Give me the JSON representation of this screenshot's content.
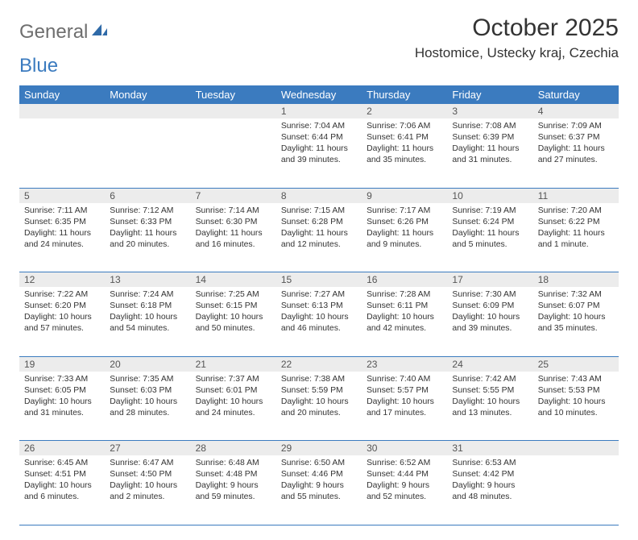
{
  "logo": {
    "part1": "General",
    "part2": "Blue"
  },
  "title": "October 2025",
  "location": "Hostomice, Ustecky kraj, Czechia",
  "colors": {
    "header_bg": "#3b7bbf",
    "header_text": "#ffffff",
    "daynum_bg": "#ececec",
    "border": "#3b7bbf",
    "logo_gray": "#6e6e6e",
    "logo_blue": "#3b7bbf"
  },
  "weekdays": [
    "Sunday",
    "Monday",
    "Tuesday",
    "Wednesday",
    "Thursday",
    "Friday",
    "Saturday"
  ],
  "weeks": [
    {
      "nums": [
        "",
        "",
        "",
        "1",
        "2",
        "3",
        "4"
      ],
      "cells": [
        null,
        null,
        null,
        {
          "sunrise": "7:04 AM",
          "sunset": "6:44 PM",
          "dayh": "11",
          "daym": "39"
        },
        {
          "sunrise": "7:06 AM",
          "sunset": "6:41 PM",
          "dayh": "11",
          "daym": "35"
        },
        {
          "sunrise": "7:08 AM",
          "sunset": "6:39 PM",
          "dayh": "11",
          "daym": "31"
        },
        {
          "sunrise": "7:09 AM",
          "sunset": "6:37 PM",
          "dayh": "11",
          "daym": "27"
        }
      ]
    },
    {
      "nums": [
        "5",
        "6",
        "7",
        "8",
        "9",
        "10",
        "11"
      ],
      "cells": [
        {
          "sunrise": "7:11 AM",
          "sunset": "6:35 PM",
          "dayh": "11",
          "daym": "24"
        },
        {
          "sunrise": "7:12 AM",
          "sunset": "6:33 PM",
          "dayh": "11",
          "daym": "20"
        },
        {
          "sunrise": "7:14 AM",
          "sunset": "6:30 PM",
          "dayh": "11",
          "daym": "16"
        },
        {
          "sunrise": "7:15 AM",
          "sunset": "6:28 PM",
          "dayh": "11",
          "daym": "12"
        },
        {
          "sunrise": "7:17 AM",
          "sunset": "6:26 PM",
          "dayh": "11",
          "daym": "9"
        },
        {
          "sunrise": "7:19 AM",
          "sunset": "6:24 PM",
          "dayh": "11",
          "daym": "5"
        },
        {
          "sunrise": "7:20 AM",
          "sunset": "6:22 PM",
          "dayh": "11",
          "daym": "1",
          "singular": true
        }
      ]
    },
    {
      "nums": [
        "12",
        "13",
        "14",
        "15",
        "16",
        "17",
        "18"
      ],
      "cells": [
        {
          "sunrise": "7:22 AM",
          "sunset": "6:20 PM",
          "dayh": "10",
          "daym": "57"
        },
        {
          "sunrise": "7:24 AM",
          "sunset": "6:18 PM",
          "dayh": "10",
          "daym": "54"
        },
        {
          "sunrise": "7:25 AM",
          "sunset": "6:15 PM",
          "dayh": "10",
          "daym": "50"
        },
        {
          "sunrise": "7:27 AM",
          "sunset": "6:13 PM",
          "dayh": "10",
          "daym": "46"
        },
        {
          "sunrise": "7:28 AM",
          "sunset": "6:11 PM",
          "dayh": "10",
          "daym": "42"
        },
        {
          "sunrise": "7:30 AM",
          "sunset": "6:09 PM",
          "dayh": "10",
          "daym": "39"
        },
        {
          "sunrise": "7:32 AM",
          "sunset": "6:07 PM",
          "dayh": "10",
          "daym": "35"
        }
      ]
    },
    {
      "nums": [
        "19",
        "20",
        "21",
        "22",
        "23",
        "24",
        "25"
      ],
      "cells": [
        {
          "sunrise": "7:33 AM",
          "sunset": "6:05 PM",
          "dayh": "10",
          "daym": "31"
        },
        {
          "sunrise": "7:35 AM",
          "sunset": "6:03 PM",
          "dayh": "10",
          "daym": "28"
        },
        {
          "sunrise": "7:37 AM",
          "sunset": "6:01 PM",
          "dayh": "10",
          "daym": "24"
        },
        {
          "sunrise": "7:38 AM",
          "sunset": "5:59 PM",
          "dayh": "10",
          "daym": "20"
        },
        {
          "sunrise": "7:40 AM",
          "sunset": "5:57 PM",
          "dayh": "10",
          "daym": "17"
        },
        {
          "sunrise": "7:42 AM",
          "sunset": "5:55 PM",
          "dayh": "10",
          "daym": "13"
        },
        {
          "sunrise": "7:43 AM",
          "sunset": "5:53 PM",
          "dayh": "10",
          "daym": "10"
        }
      ]
    },
    {
      "nums": [
        "26",
        "27",
        "28",
        "29",
        "30",
        "31",
        ""
      ],
      "cells": [
        {
          "sunrise": "6:45 AM",
          "sunset": "4:51 PM",
          "dayh": "10",
          "daym": "6"
        },
        {
          "sunrise": "6:47 AM",
          "sunset": "4:50 PM",
          "dayh": "10",
          "daym": "2"
        },
        {
          "sunrise": "6:48 AM",
          "sunset": "4:48 PM",
          "dayh": "9",
          "daym": "59"
        },
        {
          "sunrise": "6:50 AM",
          "sunset": "4:46 PM",
          "dayh": "9",
          "daym": "55"
        },
        {
          "sunrise": "6:52 AM",
          "sunset": "4:44 PM",
          "dayh": "9",
          "daym": "52"
        },
        {
          "sunrise": "6:53 AM",
          "sunset": "4:42 PM",
          "dayh": "9",
          "daym": "48"
        },
        null
      ]
    }
  ]
}
